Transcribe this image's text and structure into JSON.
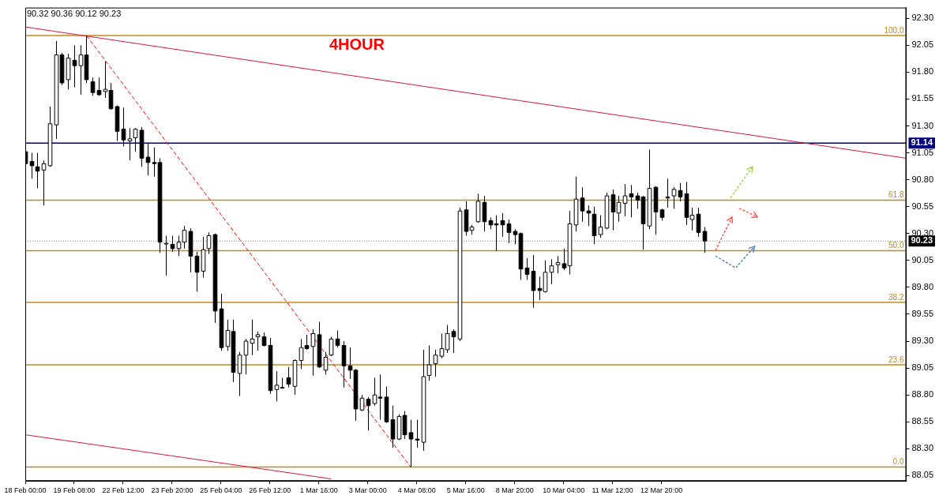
{
  "chart_data": {
    "type": "candlestick",
    "title": "4HOUR",
    "annotations": [
      "90.32 90.36 90.12 90.23",
      {
        "text": "100.0",
        "y": 92.14
      },
      {
        "text": "61.8",
        "y": 90.61
      },
      {
        "text": "50.0",
        "y": 90.14
      },
      {
        "text": "38.2",
        "y": 89.66
      },
      {
        "text": "23.6",
        "y": 89.08
      },
      {
        "text": "0.0",
        "y": 88.13
      }
    ],
    "categories": [
      "18 Feb 00:00",
      null,
      null,
      null,
      null,
      null,
      null,
      null,
      "19 Feb 08:00",
      null,
      null,
      null,
      null,
      null,
      null,
      null,
      "22 Feb 12:00",
      null,
      null,
      null,
      null,
      null,
      null,
      null,
      "23 Feb 20:00",
      null,
      null,
      null,
      null,
      null,
      null,
      null,
      "25 Feb 04:00",
      null,
      null,
      null,
      null,
      null,
      null,
      null,
      "26 Feb 12:00",
      null,
      null,
      null,
      null,
      null,
      null,
      null,
      "1 Mar 16:00",
      null,
      null,
      null,
      null,
      null,
      null,
      null,
      "3 Mar 00:00",
      null,
      null,
      null,
      null,
      null,
      null,
      null,
      "4 Mar 08:00",
      null,
      null,
      null,
      null,
      null,
      null,
      null,
      "5 Mar 16:00",
      null,
      null,
      null,
      null,
      null,
      null,
      null,
      "8 Mar 20:00",
      null,
      null,
      null,
      null,
      null,
      null,
      null,
      "10 Mar 04:00",
      null,
      null,
      null,
      null,
      null,
      null,
      null,
      "11 Mar 12:00",
      null,
      null,
      null,
      null,
      null,
      null,
      null,
      "12 Mar 20:00",
      null,
      null,
      null,
      null,
      null,
      null,
      null,
      null,
      null,
      null,
      null,
      null,
      null,
      null,
      null,
      null,
      null,
      null,
      null,
      null,
      null,
      null,
      null,
      null,
      null,
      null,
      null,
      null,
      null,
      null,
      null,
      null,
      null,
      null,
      null,
      null,
      null,
      null,
      null,
      null
    ],
    "ohlc": [
      [
        91.06,
        91.09,
        90.92,
        90.95
      ],
      [
        90.97,
        91.05,
        90.81,
        90.93
      ],
      [
        90.92,
        91.05,
        90.72,
        90.88
      ],
      [
        90.89,
        90.98,
        90.56,
        90.95
      ],
      [
        90.93,
        91.48,
        90.92,
        91.32
      ],
      [
        91.31,
        92.09,
        91.18,
        91.96
      ],
      [
        91.96,
        91.98,
        91.68,
        91.7
      ],
      [
        91.73,
        91.97,
        91.64,
        91.93
      ],
      [
        91.91,
        92.05,
        91.66,
        91.86
      ],
      [
        91.86,
        92.05,
        91.59,
        91.96
      ],
      [
        91.96,
        92.14,
        91.7,
        91.73
      ],
      [
        91.71,
        91.75,
        91.58,
        91.61
      ],
      [
        91.63,
        91.75,
        91.58,
        91.59
      ],
      [
        91.62,
        91.9,
        91.56,
        91.64
      ],
      [
        91.63,
        91.7,
        91.45,
        91.46
      ],
      [
        91.48,
        91.49,
        91.16,
        91.25
      ],
      [
        91.27,
        91.47,
        91.11,
        91.17
      ],
      [
        91.16,
        91.28,
        90.98,
        91.18
      ],
      [
        91.19,
        91.28,
        91.06,
        91.27
      ],
      [
        91.26,
        91.29,
        90.92,
        91.0
      ],
      [
        91.01,
        91.14,
        90.84,
        90.96
      ],
      [
        90.96,
        91.1,
        90.83,
        90.95
      ],
      [
        90.96,
        91.0,
        90.12,
        90.22
      ],
      [
        90.21,
        90.28,
        89.91,
        90.21
      ],
      [
        90.2,
        90.28,
        90.13,
        90.16
      ],
      [
        90.16,
        90.28,
        90.09,
        90.22
      ],
      [
        90.22,
        90.37,
        90.16,
        90.33
      ],
      [
        90.32,
        90.35,
        89.94,
        90.09
      ],
      [
        90.09,
        90.13,
        89.76,
        89.94
      ],
      [
        89.95,
        90.27,
        89.89,
        90.15
      ],
      [
        90.16,
        90.31,
        90.11,
        90.28
      ],
      [
        90.29,
        90.3,
        89.47,
        89.58
      ],
      [
        89.6,
        89.74,
        89.21,
        89.24
      ],
      [
        89.25,
        89.5,
        89.21,
        89.4
      ],
      [
        89.39,
        89.5,
        88.92,
        89.01
      ],
      [
        89.0,
        89.2,
        88.79,
        89.17
      ],
      [
        89.17,
        89.32,
        88.99,
        89.3
      ],
      [
        89.28,
        89.5,
        89.17,
        89.32
      ],
      [
        89.34,
        89.39,
        89.21,
        89.36
      ],
      [
        89.34,
        89.38,
        89.25,
        89.26
      ],
      [
        89.26,
        89.33,
        88.81,
        88.84
      ],
      [
        88.85,
        89.02,
        88.74,
        88.89
      ],
      [
        88.87,
        88.96,
        88.86,
        88.87
      ],
      [
        88.96,
        89.06,
        88.87,
        88.9
      ],
      [
        88.88,
        89.13,
        88.8,
        89.12
      ],
      [
        89.12,
        89.32,
        89.04,
        89.24
      ],
      [
        89.26,
        89.36,
        89.22,
        89.23
      ],
      [
        89.25,
        89.41,
        88.98,
        89.37
      ],
      [
        89.36,
        89.48,
        89.05,
        89.06
      ],
      [
        89.03,
        89.2,
        88.99,
        89.15
      ],
      [
        89.17,
        89.34,
        89.16,
        89.32
      ],
      [
        89.32,
        89.4,
        89.24,
        89.26
      ],
      [
        89.26,
        89.3,
        88.87,
        89.07
      ],
      [
        89.07,
        89.24,
        88.95,
        89.03
      ],
      [
        89.03,
        89.04,
        88.56,
        88.67
      ],
      [
        88.66,
        88.8,
        88.65,
        88.77
      ],
      [
        88.76,
        88.78,
        88.47,
        88.7
      ],
      [
        88.72,
        88.96,
        88.7,
        88.8
      ],
      [
        88.78,
        88.99,
        88.57,
        88.77
      ],
      [
        88.78,
        88.88,
        88.54,
        88.55
      ],
      [
        88.57,
        88.7,
        88.31,
        88.39
      ],
      [
        88.39,
        88.62,
        88.38,
        88.6
      ],
      [
        88.61,
        88.65,
        88.39,
        88.43
      ],
      [
        88.45,
        88.57,
        88.13,
        88.39
      ],
      [
        88.39,
        88.57,
        88.31,
        88.38
      ],
      [
        88.36,
        89.22,
        88.28,
        88.97
      ],
      [
        88.98,
        89.26,
        88.93,
        89.08
      ],
      [
        89.09,
        89.22,
        88.97,
        89.17
      ],
      [
        89.16,
        89.37,
        89.14,
        89.23
      ],
      [
        89.22,
        89.45,
        89.19,
        89.37
      ],
      [
        89.39,
        89.41,
        89.19,
        89.34
      ],
      [
        89.32,
        90.54,
        89.3,
        90.51
      ],
      [
        90.52,
        90.6,
        90.28,
        90.32
      ],
      [
        90.33,
        90.38,
        90.29,
        90.36
      ],
      [
        90.41,
        90.67,
        90.4,
        90.6
      ],
      [
        90.59,
        90.65,
        90.32,
        90.41
      ],
      [
        90.42,
        90.45,
        90.34,
        90.38
      ],
      [
        90.39,
        90.47,
        90.14,
        90.38
      ],
      [
        90.42,
        90.49,
        90.27,
        90.38
      ],
      [
        90.39,
        90.43,
        90.21,
        90.31
      ],
      [
        90.32,
        90.34,
        90.2,
        90.29
      ],
      [
        90.3,
        90.31,
        89.87,
        89.97
      ],
      [
        89.98,
        90.07,
        89.87,
        89.92
      ],
      [
        89.95,
        90.1,
        89.61,
        89.77
      ],
      [
        89.79,
        89.9,
        89.68,
        89.77
      ],
      [
        89.76,
        90.05,
        89.75,
        89.94
      ],
      [
        89.94,
        90.06,
        89.83,
        90.0
      ],
      [
        90.01,
        90.09,
        89.93,
        90.03
      ],
      [
        90.02,
        90.16,
        89.96,
        89.98
      ],
      [
        90.0,
        90.51,
        89.92,
        90.39
      ],
      [
        90.38,
        90.83,
        90.32,
        90.62
      ],
      [
        90.63,
        90.73,
        90.41,
        90.51
      ],
      [
        90.51,
        90.56,
        90.37,
        90.49
      ],
      [
        90.48,
        90.55,
        90.2,
        90.28
      ],
      [
        90.29,
        90.47,
        90.26,
        90.36
      ],
      [
        90.35,
        90.68,
        90.34,
        90.65
      ],
      [
        90.66,
        90.71,
        90.33,
        90.5
      ],
      [
        90.49,
        90.65,
        90.41,
        90.59
      ],
      [
        90.58,
        90.76,
        90.46,
        90.65
      ],
      [
        90.67,
        90.75,
        90.45,
        90.64
      ],
      [
        90.65,
        90.68,
        90.53,
        90.61
      ],
      [
        90.64,
        90.65,
        90.15,
        90.39
      ],
      [
        90.37,
        91.08,
        90.34,
        90.72
      ],
      [
        90.73,
        90.74,
        90.29,
        90.5
      ],
      [
        90.52,
        90.53,
        90.42,
        90.45
      ],
      [
        90.63,
        90.81,
        90.54,
        90.64
      ],
      [
        90.65,
        90.73,
        90.53,
        90.71
      ],
      [
        90.7,
        90.77,
        90.6,
        90.64
      ],
      [
        90.67,
        90.78,
        90.38,
        90.45
      ],
      [
        90.43,
        90.54,
        90.33,
        90.47
      ],
      [
        90.48,
        90.54,
        90.27,
        90.31
      ],
      [
        90.32,
        90.36,
        90.12,
        90.23
      ],
      null,
      null,
      null,
      null,
      null,
      null,
      null,
      null,
      null,
      null,
      null,
      null,
      null,
      null,
      null,
      null,
      null,
      null,
      null,
      null,
      null,
      null,
      null,
      null,
      null,
      null,
      null,
      null,
      null,
      null,
      null,
      null,
      null
    ],
    "series": [
      {
        "type": "line",
        "color": "#dc143c",
        "values": [
          92.22,
          null,
          null,
          null,
          null,
          null,
          null,
          null,
          null,
          null,
          null,
          null,
          null,
          null,
          null,
          null,
          null,
          null,
          null,
          null,
          null,
          null,
          null,
          null,
          null,
          null,
          null,
          null,
          null,
          null,
          null,
          null,
          null,
          null,
          null,
          null,
          null,
          null,
          null,
          null,
          null,
          null,
          null,
          null,
          null,
          null,
          null,
          null,
          null,
          null,
          null,
          null,
          null,
          null,
          null,
          null,
          null,
          null,
          null,
          null,
          null,
          null,
          null,
          null,
          null,
          null,
          null,
          null,
          null,
          null,
          null,
          null,
          null,
          null,
          null,
          null,
          null,
          null,
          null,
          null,
          null,
          null,
          null,
          null,
          null,
          null,
          null,
          null,
          null,
          null,
          null,
          null,
          null,
          null,
          null,
          null,
          null,
          null,
          null,
          null,
          null,
          null,
          null,
          null,
          null,
          null,
          null,
          null,
          null,
          null,
          null,
          null,
          null,
          null,
          null,
          null,
          null,
          null,
          null,
          null,
          null,
          null,
          null,
          null,
          null,
          null,
          null,
          null,
          null,
          null,
          null,
          null,
          null,
          null,
          null,
          null,
          null,
          null,
          null,
          null,
          null,
          null,
          null,
          null,
          91.0
        ]
      },
      {
        "type": "line",
        "color": "#dc143c",
        "values": [
          88.43,
          null,
          null,
          null,
          null,
          null,
          null,
          null,
          null,
          null,
          null,
          null,
          null,
          null,
          null,
          null,
          null,
          null,
          null,
          null,
          null,
          null,
          null,
          null,
          null,
          null,
          null,
          null,
          null,
          null,
          null,
          null,
          null,
          null,
          null,
          null,
          null,
          null,
          null,
          null,
          null,
          null,
          null,
          null,
          null,
          null,
          null,
          null,
          null,
          null,
          88.02,
          null,
          null,
          null,
          null,
          null,
          null,
          null,
          null,
          null,
          null,
          null,
          null,
          null,
          null,
          null,
          null,
          null,
          null,
          null,
          null,
          null,
          null,
          null,
          null,
          null,
          null,
          null,
          null,
          null,
          null,
          null,
          null,
          null,
          null,
          null,
          null,
          null,
          null,
          null,
          null,
          null,
          null,
          null,
          null,
          null,
          null,
          null,
          null,
          null,
          null,
          null,
          null,
          null,
          null,
          null,
          null,
          null,
          null,
          null,
          null,
          null,
          null,
          null,
          null,
          null,
          null,
          null,
          null,
          null,
          null,
          null,
          null,
          null,
          null,
          null,
          null,
          null,
          null,
          null,
          null,
          null,
          null,
          null,
          null,
          null,
          null,
          null,
          null,
          null,
          null,
          null,
          null,
          null,
          null
        ]
      },
      {
        "type": "line",
        "color": "#ff0000",
        "line_style": "dashed",
        "values": [
          null,
          null,
          null,
          null,
          null,
          null,
          null,
          null,
          null,
          null,
          92.14,
          null,
          null,
          null,
          null,
          null,
          null,
          null,
          null,
          null,
          null,
          null,
          null,
          null,
          null,
          null,
          null,
          null,
          null,
          null,
          null,
          null,
          null,
          null,
          null,
          null,
          null,
          null,
          null,
          null,
          null,
          null,
          null,
          null,
          null,
          null,
          null,
          null,
          null,
          null,
          null,
          null,
          null,
          null,
          null,
          null,
          null,
          null,
          null,
          null,
          null,
          null,
          null,
          88.13,
          null,
          null,
          null,
          null,
          null,
          null,
          null,
          null,
          null,
          null,
          null,
          null,
          null,
          null,
          null,
          null,
          null,
          null,
          null,
          null,
          null,
          null,
          null,
          null,
          null,
          null,
          null,
          null,
          null,
          null,
          null,
          null,
          null,
          null,
          null,
          null,
          null,
          null,
          null,
          null,
          null,
          null,
          null,
          null,
          null,
          null,
          null,
          null,
          null,
          null,
          null,
          null,
          null,
          null,
          null,
          null,
          null,
          null,
          null,
          null,
          null,
          null,
          null,
          null,
          null,
          null,
          null,
          null,
          null,
          null,
          null,
          null,
          null,
          null,
          null,
          null,
          null,
          null,
          null,
          null,
          null
        ]
      }
    ],
    "ylim": [
      88.0,
      92.4
    ],
    "yticks": [
      {
        "value": 88.05,
        "label": "88.05"
      },
      {
        "value": 88.3,
        "label": "88.30"
      },
      {
        "value": 88.55,
        "label": "88.55"
      },
      {
        "value": 88.8,
        "label": "88.80"
      },
      {
        "value": 89.05,
        "label": "89.05"
      },
      {
        "value": 89.3,
        "label": "89.30"
      },
      {
        "value": 89.55,
        "label": "89.55"
      },
      {
        "value": 89.8,
        "label": "89.80"
      },
      {
        "value": 90.05,
        "label": "90.05"
      },
      {
        "value": 90.3,
        "label": "90.30"
      },
      {
        "value": 90.55,
        "label": "90.55"
      },
      {
        "value": 90.8,
        "label": "90.80"
      },
      {
        "value": 91.05,
        "label": "91.05"
      },
      {
        "value": 91.3,
        "label": "91.30"
      },
      {
        "value": 91.55,
        "label": "91.55"
      },
      {
        "value": 91.8,
        "label": "91.80"
      },
      {
        "value": 92.05,
        "label": "92.05"
      },
      {
        "value": 92.3,
        "label": "92.30"
      }
    ],
    "ref_lines": [
      {
        "axis": "y",
        "value": 92.14,
        "color": "#c08a1a"
      },
      {
        "axis": "y",
        "value": 90.61,
        "color": "#c08a1a"
      },
      {
        "axis": "y",
        "value": 90.14,
        "color": "#c08a1a"
      },
      {
        "axis": "y",
        "value": 89.66,
        "color": "#c08a1a"
      },
      {
        "axis": "y",
        "value": 89.08,
        "color": "#c08a1a"
      },
      {
        "axis": "y",
        "value": 88.13,
        "color": "#c08a1a"
      },
      {
        "axis": "y",
        "value": 91.14,
        "label": "91.14",
        "color": "#000080"
      },
      {
        "axis": "y",
        "value": 90.23,
        "label": "90.23",
        "color": "#808080",
        "line_style": "dotted"
      }
    ]
  }
}
